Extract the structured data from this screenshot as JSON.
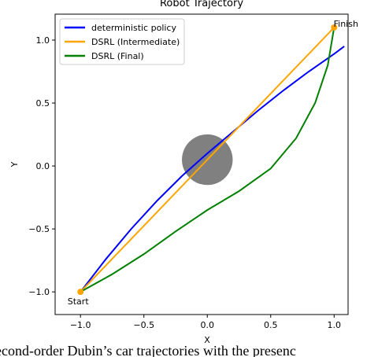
{
  "chart_data": {
    "type": "line",
    "title": "Robot Trajectory",
    "x_label": "X",
    "y_label": "Y",
    "xlim": [
      -1.2,
      1.11
    ],
    "ylim": [
      -1.18,
      1.206
    ],
    "xticks": [
      {
        "value": -1.0,
        "label": "−1.0"
      },
      {
        "value": -0.5,
        "label": "−0.5"
      },
      {
        "value": 0.0,
        "label": "0.0"
      },
      0.5,
      {
        "value": 1.0,
        "label": "1.0"
      }
    ],
    "yticks": [
      {
        "value": -1.0,
        "label": "−1.0"
      },
      {
        "value": -0.5,
        "label": "−0.5"
      },
      {
        "value": 0.0,
        "label": "0.0"
      },
      0.5,
      {
        "value": 1.0,
        "label": "1.0"
      }
    ],
    "legend": "upper left",
    "series": [
      {
        "name": "deterministic policy",
        "color": "#0000ff",
        "x": [
          -1,
          -0.8,
          -0.6,
          -0.4,
          -0.2,
          0,
          0.2,
          0.4,
          0.6,
          0.8,
          1.0,
          1.08
        ],
        "values": [
          -1,
          -0.74,
          -0.5,
          -0.28,
          -0.08,
          0.1,
          0.27,
          0.44,
          0.6,
          0.75,
          0.89,
          0.95
        ]
      },
      {
        "name": "DSRL (Intermediate)",
        "color": "#ffa500",
        "x": [
          -1,
          0,
          1
        ],
        "values": [
          -1,
          0.05,
          1.1
        ]
      },
      {
        "name": "DSRL (Final)",
        "color": "#008000",
        "x": [
          -1,
          -0.75,
          -0.5,
          -0.25,
          0,
          0.25,
          0.5,
          0.7,
          0.85,
          0.95,
          1.0
        ],
        "values": [
          -1,
          -0.86,
          -0.7,
          -0.52,
          -0.35,
          -0.2,
          -0.02,
          0.22,
          0.5,
          0.8,
          1.1
        ]
      }
    ],
    "obstacle": {
      "x": 0,
      "y": 0.05,
      "radius": 0.2,
      "color": "#808080"
    },
    "points": [
      {
        "label": "Start",
        "x": -1,
        "y": -1,
        "color": "#ffa500"
      },
      {
        "label": "Finish",
        "x": 1,
        "y": 1.1,
        "color": "#ffa500"
      }
    ]
  },
  "caption": "econd-order Dubin’s car trajectories with the presenc"
}
